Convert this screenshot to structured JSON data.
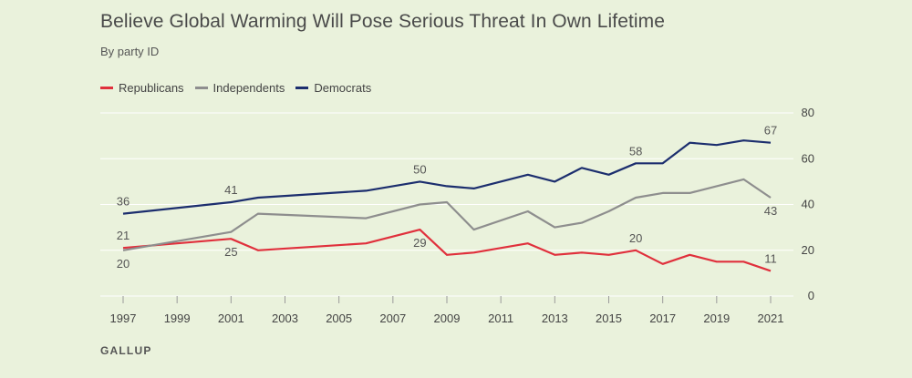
{
  "chart_data": {
    "type": "line",
    "title": "Believe Global Warming Will Pose Serious Threat In Own Lifetime",
    "subtitle": "By party ID",
    "source": "GALLUP",
    "xlabel": "",
    "ylabel": "",
    "ylim": [
      0,
      80
    ],
    "xlim": [
      1997,
      2021
    ],
    "yticks": [
      0,
      20,
      40,
      60,
      80
    ],
    "xticks": [
      "1997",
      "1999",
      "2001",
      "2003",
      "2005",
      "2007",
      "2009",
      "2011",
      "2013",
      "2015",
      "2017",
      "2019",
      "2021"
    ],
    "legend_position": "top-left",
    "series": [
      {
        "name": "Republicans",
        "color": "#e0303c",
        "x": [
          1997,
          2001,
          2002,
          2006,
          2008,
          2009,
          2010,
          2012,
          2013,
          2014,
          2015,
          2016,
          2017,
          2018,
          2019,
          2020,
          2021
        ],
        "values": [
          21,
          25,
          20,
          23,
          29,
          18,
          19,
          23,
          18,
          19,
          18,
          20,
          14,
          18,
          15,
          15,
          11
        ]
      },
      {
        "name": "Independents",
        "color": "#8e8e8e",
        "x": [
          1997,
          2001,
          2002,
          2006,
          2008,
          2009,
          2010,
          2012,
          2013,
          2014,
          2015,
          2016,
          2017,
          2018,
          2019,
          2020,
          2021
        ],
        "values": [
          20,
          28,
          36,
          34,
          40,
          41,
          29,
          37,
          30,
          32,
          37,
          43,
          45,
          45,
          48,
          51,
          43
        ]
      },
      {
        "name": "Democrats",
        "color": "#1c2e6e",
        "x": [
          1997,
          2001,
          2002,
          2006,
          2008,
          2009,
          2010,
          2012,
          2013,
          2014,
          2015,
          2016,
          2017,
          2018,
          2019,
          2020,
          2021
        ],
        "values": [
          36,
          41,
          43,
          46,
          50,
          48,
          47,
          53,
          50,
          56,
          53,
          58,
          58,
          67,
          66,
          68,
          67
        ]
      }
    ],
    "annotations": [
      {
        "series": "Democrats",
        "x": 1997,
        "text": "36",
        "pos": "above"
      },
      {
        "series": "Democrats",
        "x": 2001,
        "text": "41",
        "pos": "above"
      },
      {
        "series": "Democrats",
        "x": 2008,
        "text": "50",
        "pos": "above"
      },
      {
        "series": "Democrats",
        "x": 2016,
        "text": "58",
        "pos": "above"
      },
      {
        "series": "Democrats",
        "x": 2021,
        "text": "67",
        "pos": "above"
      },
      {
        "series": "Republicans",
        "x": 1997,
        "text": "21",
        "pos": "above"
      },
      {
        "series": "Independents",
        "x": 1997,
        "text": "20",
        "pos": "below"
      },
      {
        "series": "Republicans",
        "x": 2001,
        "text": "25",
        "pos": "below"
      },
      {
        "series": "Republicans",
        "x": 2008,
        "text": "29",
        "pos": "below"
      },
      {
        "series": "Republicans",
        "x": 2016,
        "text": "20",
        "pos": "above"
      },
      {
        "series": "Republicans",
        "x": 2021,
        "text": "11",
        "pos": "above"
      },
      {
        "series": "Independents",
        "x": 2021,
        "text": "43",
        "pos": "below"
      }
    ]
  }
}
